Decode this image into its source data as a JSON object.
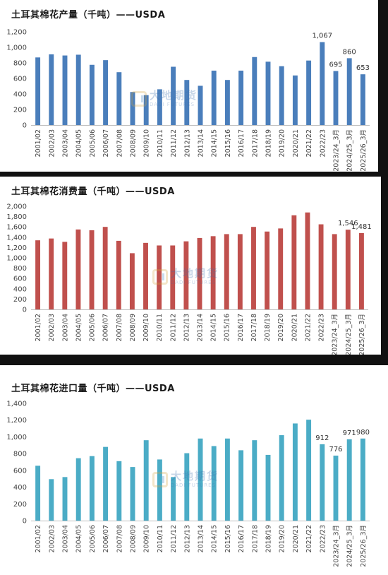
{
  "watermark": {
    "text_cn": "大地期货",
    "text_en": "DADI FUTURES"
  },
  "chart_data": [
    {
      "type": "bar",
      "title": "土耳其棉花产量（千吨）——USDA",
      "color": "#4a7ebb",
      "ylim": [
        0,
        1200
      ],
      "yticks": [
        0,
        200,
        400,
        600,
        800,
        1000,
        1200
      ],
      "ytick_labels": [
        "0",
        "200",
        "400",
        "600",
        "800",
        "1,000",
        "1,200"
      ],
      "grid": false,
      "categories": [
        "2001/02",
        "2002/03",
        "2003/04",
        "2004/05",
        "2005/06",
        "2006/07",
        "2007/08",
        "2008/09",
        "2009/10",
        "2010/11",
        "2011/12",
        "2012/13",
        "2013/14",
        "2014/15",
        "2015/16",
        "2016/17",
        "2017/18",
        "2018/19",
        "2019/20",
        "2020/21",
        "2021/22",
        "2022/23",
        "2023/24_3月",
        "2024/25_3月",
        "2025/26_3月"
      ],
      "values": [
        870,
        910,
        895,
        905,
        775,
        835,
        680,
        425,
        385,
        460,
        750,
        580,
        505,
        700,
        580,
        700,
        875,
        815,
        757,
        638,
        830,
        1067,
        695,
        860,
        653
      ],
      "data_labels": [
        {
          "index": 21,
          "text": "1,067"
        },
        {
          "index": 22,
          "text": "695"
        },
        {
          "index": 23,
          "text": "860"
        },
        {
          "index": 24,
          "text": "653"
        }
      ]
    },
    {
      "type": "bar",
      "title": "土耳其棉花消费量（千吨）——USDA",
      "color": "#c0504d",
      "ylim": [
        0,
        2000
      ],
      "yticks": [
        0,
        200,
        400,
        600,
        800,
        1000,
        1200,
        1400,
        1600,
        1800,
        2000
      ],
      "ytick_labels": [
        "0",
        "200",
        "400",
        "600",
        "800",
        "1,000",
        "1,200",
        "1,400",
        "1,600",
        "1,800",
        "2,000"
      ],
      "grid": false,
      "categories": [
        "2001/02",
        "2002/03",
        "2003/04",
        "2004/05",
        "2005/06",
        "2006/07",
        "2007/08",
        "2008/09",
        "2009/10",
        "2010/11",
        "2011/12",
        "2012/13",
        "2013/14",
        "2014/15",
        "2015/16",
        "2016/17",
        "2017/18",
        "2018/19",
        "2019/20",
        "2020/21",
        "2021/22",
        "2022/23",
        "2023/24_3月",
        "2024/25_3月",
        "2025/26_3月"
      ],
      "values": [
        1340,
        1375,
        1310,
        1550,
        1535,
        1600,
        1330,
        1090,
        1290,
        1240,
        1240,
        1320,
        1385,
        1420,
        1460,
        1460,
        1600,
        1510,
        1570,
        1825,
        1880,
        1650,
        1460,
        1546,
        1481
      ],
      "data_labels": [
        {
          "index": 23,
          "text": "1,546"
        },
        {
          "index": 24,
          "text": "1,481"
        }
      ]
    },
    {
      "type": "bar",
      "title": "土耳其棉花进口量（千吨）——USDA",
      "color": "#4bacc6",
      "ylim": [
        0,
        1400
      ],
      "yticks": [
        0,
        200,
        400,
        600,
        800,
        1000,
        1200,
        1400
      ],
      "ytick_labels": [
        "0",
        "200",
        "400",
        "600",
        "800",
        "1,000",
        "1,200",
        "1,400"
      ],
      "grid": false,
      "categories": [
        "2001/02",
        "2002/03",
        "2003/04",
        "2004/05",
        "2005/06",
        "2006/07",
        "2007/08",
        "2008/09",
        "2009/10",
        "2010/11",
        "2011/12",
        "2012/13",
        "2013/14",
        "2014/15",
        "2015/16",
        "2016/17",
        "2017/18",
        "2018/19",
        "2019/20",
        "2020/21",
        "2021/22",
        "2022/23",
        "2023/24_3月",
        "2024/25_3月",
        "2025/26_3月"
      ],
      "values": [
        655,
        495,
        520,
        745,
        770,
        880,
        710,
        640,
        960,
        730,
        520,
        805,
        980,
        890,
        980,
        840,
        960,
        785,
        1020,
        1160,
        1205,
        912,
        776,
        971,
        980
      ],
      "data_labels": [
        {
          "index": 21,
          "text": "912"
        },
        {
          "index": 22,
          "text": "776"
        },
        {
          "index": 23,
          "text": "971"
        },
        {
          "index": 24,
          "text": "980"
        }
      ]
    }
  ]
}
